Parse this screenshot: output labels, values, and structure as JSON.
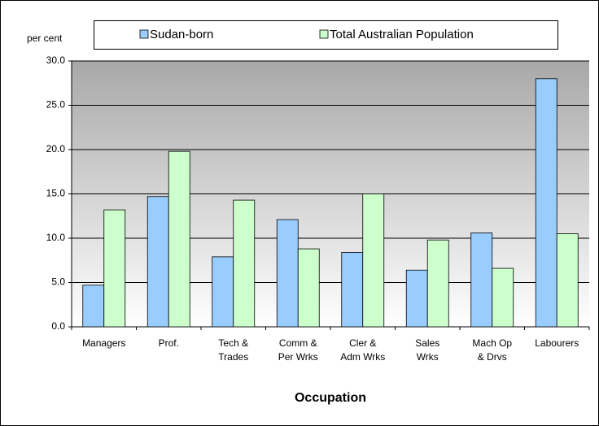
{
  "chart_data": {
    "type": "bar",
    "y_label": "per cent",
    "x_label": "Occupation",
    "categories": [
      [
        "Managers"
      ],
      [
        "Prof."
      ],
      [
        "Tech &",
        "Trades"
      ],
      [
        "Comm &",
        "Per Wrks"
      ],
      [
        "Cler &",
        "Adm Wrks"
      ],
      [
        "Sales",
        "Wrks"
      ],
      [
        "Mach Op",
        "& Drvs"
      ],
      [
        "Labourers"
      ]
    ],
    "series": [
      {
        "name": "Sudan-born",
        "color": "#99ccff",
        "values": [
          4.7,
          14.7,
          7.9,
          12.1,
          8.4,
          6.4,
          10.6,
          28.0
        ]
      },
      {
        "name": "Total Australian Population",
        "color": "#ccffcc",
        "values": [
          13.2,
          19.8,
          14.3,
          8.8,
          15.0,
          9.8,
          6.6,
          10.5
        ]
      }
    ],
    "ylim": [
      0,
      30
    ],
    "yticks": [
      {
        "value": 0,
        "label": "0.0"
      },
      {
        "value": 5,
        "label": "5.0"
      },
      {
        "value": 10,
        "label": "10.0"
      },
      {
        "value": 15,
        "label": "15.0"
      },
      {
        "value": 20,
        "label": "20.0"
      },
      {
        "value": 25,
        "label": "25.0"
      },
      {
        "value": 30,
        "label": "30.0"
      }
    ],
    "grid": true,
    "legend": "top"
  }
}
